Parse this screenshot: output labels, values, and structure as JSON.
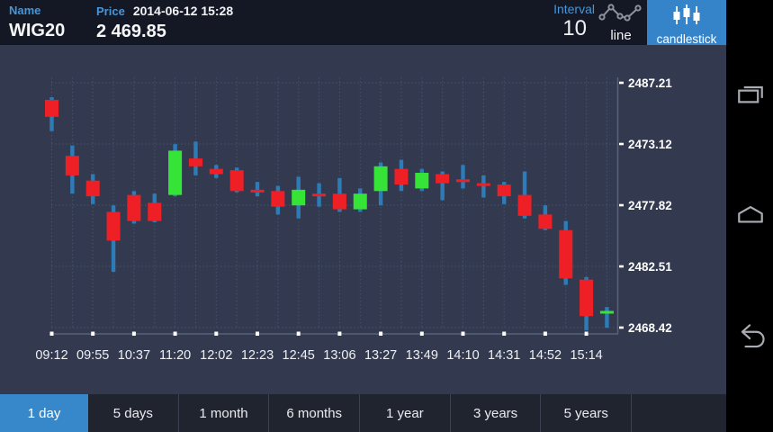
{
  "header": {
    "name_label": "Name",
    "name_value": "WIG20",
    "price_label": "Price",
    "datetime": "2014-06-12 15:28",
    "price_value": "2 469.85",
    "interval_label": "Interval",
    "interval_value": "10",
    "line_toggle_label": "line",
    "candlestick_toggle_label": "candlestick"
  },
  "colors": {
    "accent_blue": "#3584ca",
    "label_blue": "#4796d8",
    "candle_up": "#36e437",
    "candle_down": "#ee2026",
    "wick_blue": "#2d7cb8",
    "grid_dots": "#4b5a78",
    "axis_line": "#596179",
    "chart_bg": "#333a4f",
    "topbar_bg": "#141824",
    "tabbar_bg": "#20242f"
  },
  "chart_data": {
    "type": "candlestick",
    "title": "WIG20 intraday candlestick chart, 10-minute interval",
    "x_tick_labels": [
      "09:12",
      "09:55",
      "10:37",
      "11:20",
      "12:02",
      "12:23",
      "12:45",
      "13:06",
      "13:27",
      "13:49",
      "14:10",
      "14:31",
      "14:52",
      "15:14"
    ],
    "x_tick_candle_indices": [
      0,
      2,
      4,
      6,
      8,
      10,
      12,
      14,
      16,
      18,
      20,
      22,
      24,
      26
    ],
    "y_tick_labels_displayed": [
      "2487.21",
      "2473.12",
      "2477.82",
      "2482.51",
      "2468.42"
    ],
    "y_axis_top_value": 2487.21,
    "y_axis_bottom_value": 2468.42,
    "grid": true,
    "legend": "none",
    "candles": [
      {
        "o": 2485.9,
        "h": 2486.1,
        "l": 2483.5,
        "c": 2484.6
      },
      {
        "o": 2481.6,
        "h": 2482.4,
        "l": 2478.7,
        "c": 2480.1
      },
      {
        "o": 2479.7,
        "h": 2480.2,
        "l": 2477.9,
        "c": 2478.5
      },
      {
        "o": 2477.3,
        "h": 2477.8,
        "l": 2472.7,
        "c": 2475.1
      },
      {
        "o": 2478.6,
        "h": 2478.9,
        "l": 2476.4,
        "c": 2476.6
      },
      {
        "o": 2478.0,
        "h": 2478.7,
        "l": 2476.5,
        "c": 2476.6
      },
      {
        "o": 2478.6,
        "h": 2482.5,
        "l": 2478.5,
        "c": 2482.0
      },
      {
        "o": 2481.4,
        "h": 2482.7,
        "l": 2480.1,
        "c": 2480.8
      },
      {
        "o": 2480.6,
        "h": 2480.9,
        "l": 2479.9,
        "c": 2480.2
      },
      {
        "o": 2480.5,
        "h": 2480.7,
        "l": 2478.8,
        "c": 2478.9
      },
      {
        "o": 2479.0,
        "h": 2479.6,
        "l": 2478.5,
        "c": 2478.8
      },
      {
        "o": 2478.9,
        "h": 2479.3,
        "l": 2477.1,
        "c": 2477.7
      },
      {
        "o": 2477.8,
        "h": 2480.0,
        "l": 2476.8,
        "c": 2479.0
      },
      {
        "o": 2478.7,
        "h": 2479.5,
        "l": 2477.7,
        "c": 2478.5
      },
      {
        "o": 2478.7,
        "h": 2479.9,
        "l": 2477.3,
        "c": 2477.5
      },
      {
        "o": 2477.5,
        "h": 2479.1,
        "l": 2477.3,
        "c": 2478.7
      },
      {
        "o": 2478.9,
        "h": 2481.1,
        "l": 2477.8,
        "c": 2480.8
      },
      {
        "o": 2480.6,
        "h": 2481.3,
        "l": 2478.9,
        "c": 2479.4
      },
      {
        "o": 2479.1,
        "h": 2480.6,
        "l": 2478.9,
        "c": 2480.3
      },
      {
        "o": 2480.2,
        "h": 2480.4,
        "l": 2478.2,
        "c": 2479.5
      },
      {
        "o": 2479.8,
        "h": 2480.9,
        "l": 2479.1,
        "c": 2479.6
      },
      {
        "o": 2479.5,
        "h": 2480.1,
        "l": 2478.4,
        "c": 2479.3
      },
      {
        "o": 2479.4,
        "h": 2479.6,
        "l": 2477.9,
        "c": 2478.5
      },
      {
        "o": 2478.6,
        "h": 2480.4,
        "l": 2476.8,
        "c": 2477.0
      },
      {
        "o": 2477.1,
        "h": 2477.8,
        "l": 2475.9,
        "c": 2476.0
      },
      {
        "o": 2475.9,
        "h": 2476.6,
        "l": 2471.7,
        "c": 2472.2
      },
      {
        "o": 2472.1,
        "h": 2472.3,
        "l": 2468.2,
        "c": 2469.3
      },
      {
        "o": 2469.5,
        "h": 2470.0,
        "l": 2468.4,
        "c": 2469.7
      }
    ]
  },
  "tabs": [
    {
      "label": "1 day",
      "active": true
    },
    {
      "label": "5 days",
      "active": false
    },
    {
      "label": "1 month",
      "active": false
    },
    {
      "label": "6 months",
      "active": false
    },
    {
      "label": "1 year",
      "active": false
    },
    {
      "label": "3 years",
      "active": false
    },
    {
      "label": "5 years",
      "active": false
    }
  ],
  "nav_icons": [
    "recent-apps",
    "home",
    "back"
  ]
}
